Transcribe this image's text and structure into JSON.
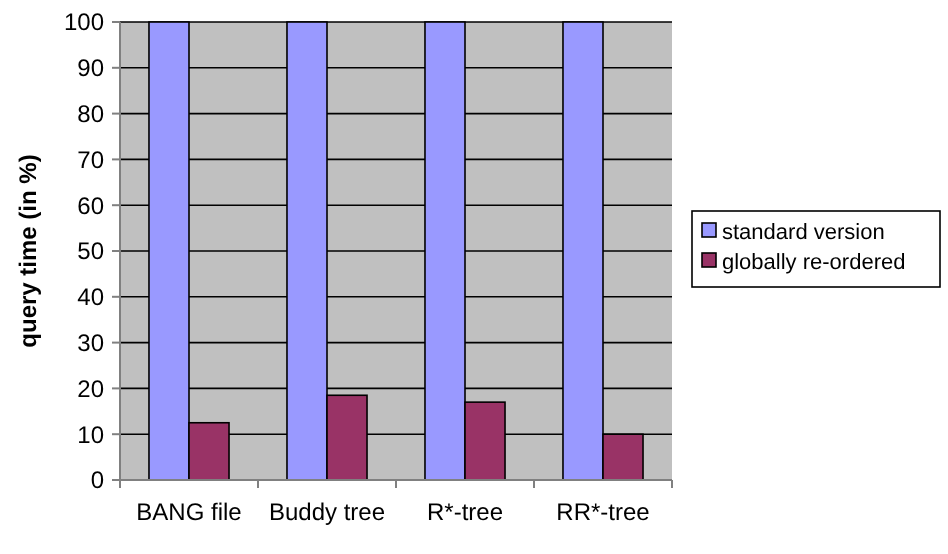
{
  "chart_data": {
    "type": "bar",
    "ylabel": "query time (in %)",
    "categories": [
      "BANG file",
      "Buddy tree",
      "R*-tree",
      "RR*-tree"
    ],
    "series": [
      {
        "name": "standard version",
        "color": "#9999ff",
        "values": [
          100,
          100,
          100,
          100
        ]
      },
      {
        "name": "globally re-ordered",
        "color": "#993366",
        "values": [
          12.5,
          18.5,
          17,
          10
        ]
      }
    ],
    "ylim": [
      0,
      100
    ],
    "yticks": [
      0,
      10,
      20,
      30,
      40,
      50,
      60,
      70,
      80,
      90,
      100
    ],
    "grid": "y",
    "legend": "right"
  }
}
